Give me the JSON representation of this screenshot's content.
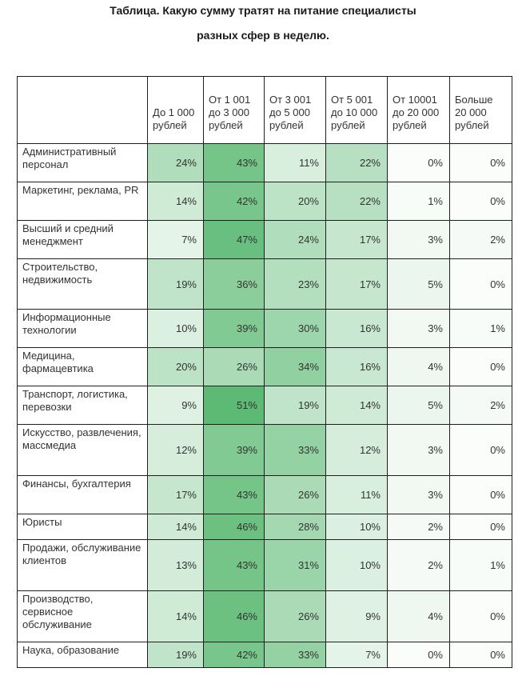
{
  "title_line1": "Таблица. Какую сумму тратят на питание специалисты",
  "title_line2": "разных сфер в неделю.",
  "headers": [
    "",
    "До 1 000 рублей",
    "От 1 001 до 3 000 рублей",
    "От 3 001 до 5 000 рублей",
    "От 5 001 до 10 000 рублей",
    "От 10001 до 20 000 рублей",
    "Больше 20 000 рублей"
  ],
  "rows": [
    {
      "label": "Административный персонал",
      "values": [
        "24%",
        "43%",
        "11%",
        "22%",
        "0%",
        "0%"
      ]
    },
    {
      "label": "Маркетинг, реклама, PR",
      "values": [
        "14%",
        "42%",
        "20%",
        "22%",
        "1%",
        "0%"
      ]
    },
    {
      "label": "Высший и средний менеджмент",
      "values": [
        "7%",
        "47%",
        "24%",
        "17%",
        "3%",
        "2%"
      ]
    },
    {
      "label": "Строительство, недвижимость",
      "values": [
        "19%",
        "36%",
        "23%",
        "17%",
        "5%",
        "0%"
      ]
    },
    {
      "label": "Информационные технологии",
      "values": [
        "10%",
        "39%",
        "30%",
        "16%",
        "3%",
        "1%"
      ]
    },
    {
      "label": "Медицина, фармацевтика",
      "values": [
        "20%",
        "26%",
        "34%",
        "16%",
        "4%",
        "0%"
      ]
    },
    {
      "label": "Транспорт, логистика, перевозки",
      "values": [
        "9%",
        "51%",
        "19%",
        "14%",
        "5%",
        "2%"
      ]
    },
    {
      "label": "Искусство, развлечения, массмедиа",
      "values": [
        "12%",
        "39%",
        "33%",
        "12%",
        "3%",
        "0%"
      ]
    },
    {
      "label": "Финансы, бухгалтерия",
      "values": [
        "17%",
        "43%",
        "26%",
        "11%",
        "3%",
        "0%"
      ]
    },
    {
      "label": "Юристы",
      "values": [
        "14%",
        "46%",
        "28%",
        "10%",
        "2%",
        "0%"
      ]
    },
    {
      "label": "Продажи, обслуживание клиентов",
      "values": [
        "13%",
        "43%",
        "31%",
        "10%",
        "2%",
        "1%"
      ]
    },
    {
      "label": "Производство, сервисное обслуживание",
      "values": [
        "14%",
        "46%",
        "26%",
        "9%",
        "4%",
        "0%"
      ]
    },
    {
      "label": "Наука, образование",
      "values": [
        "19%",
        "42%",
        "33%",
        "7%",
        "0%",
        "0%"
      ]
    }
  ],
  "colors": {
    "scale_low": "#fbfdfb",
    "scale_high": "#5cba74",
    "border": "#1f1f1f"
  }
}
